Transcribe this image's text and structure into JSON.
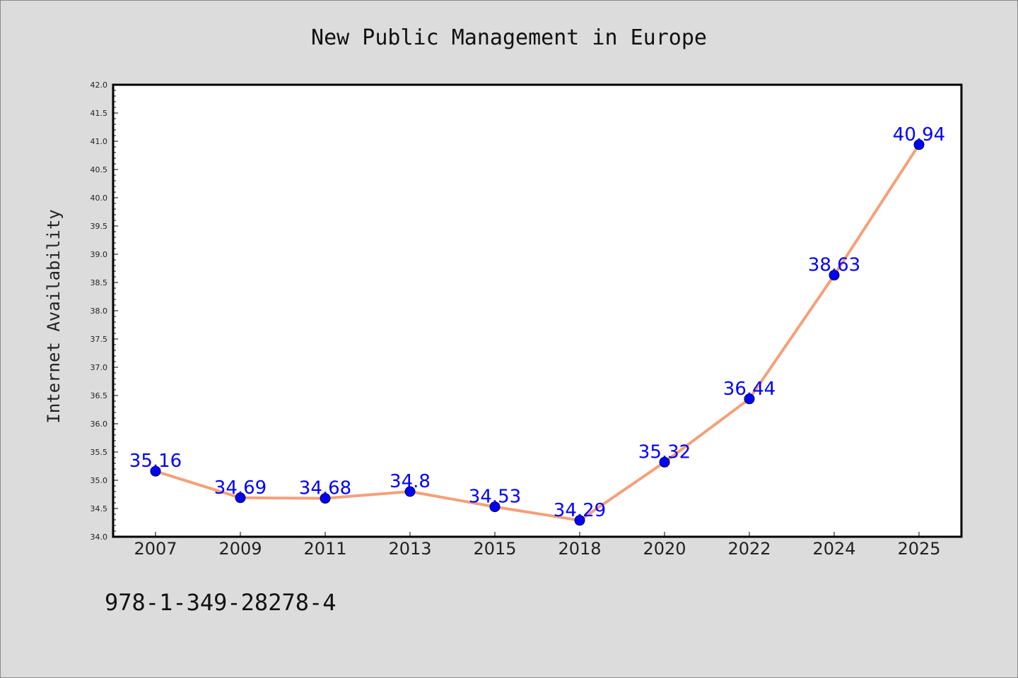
{
  "chart_data": {
    "type": "line",
    "title": "New Public Management in Europe",
    "xlabel": "",
    "ylabel": "Internet Availability",
    "categories": [
      "2007",
      "2009",
      "2011",
      "2013",
      "2015",
      "2018",
      "2020",
      "2022",
      "2024",
      "2025"
    ],
    "series": [
      {
        "values": [
          35.16,
          34.69,
          34.68,
          34.8,
          34.53,
          34.29,
          35.32,
          36.44,
          38.63,
          40.94
        ],
        "data_labels": [
          "35.16",
          "34.69",
          "34.68",
          "34.8",
          "34.53",
          "34.29",
          "35.32",
          "36.44",
          "38.63",
          "40.94"
        ],
        "line_color": "#f4a07a",
        "marker_color": "#0000ff"
      }
    ],
    "ylim": [
      34.0,
      42.0
    ],
    "yticks": [
      "34.0",
      "34.5",
      "35.0",
      "35.5",
      "36.0",
      "36.5",
      "37.0",
      "37.5",
      "38.0",
      "38.5",
      "39.0",
      "39.5",
      "40.0",
      "40.5",
      "41.0",
      "41.5",
      "42.0"
    ],
    "grid": false,
    "legend": "none"
  },
  "footer": {
    "code": "978-1-349-28278-4"
  },
  "colors": {
    "background": "#dcdcdc",
    "plot_background": "#ffffff",
    "line": "#f4a07a",
    "marker": "#0000ff",
    "data_label": "#0000ff"
  }
}
